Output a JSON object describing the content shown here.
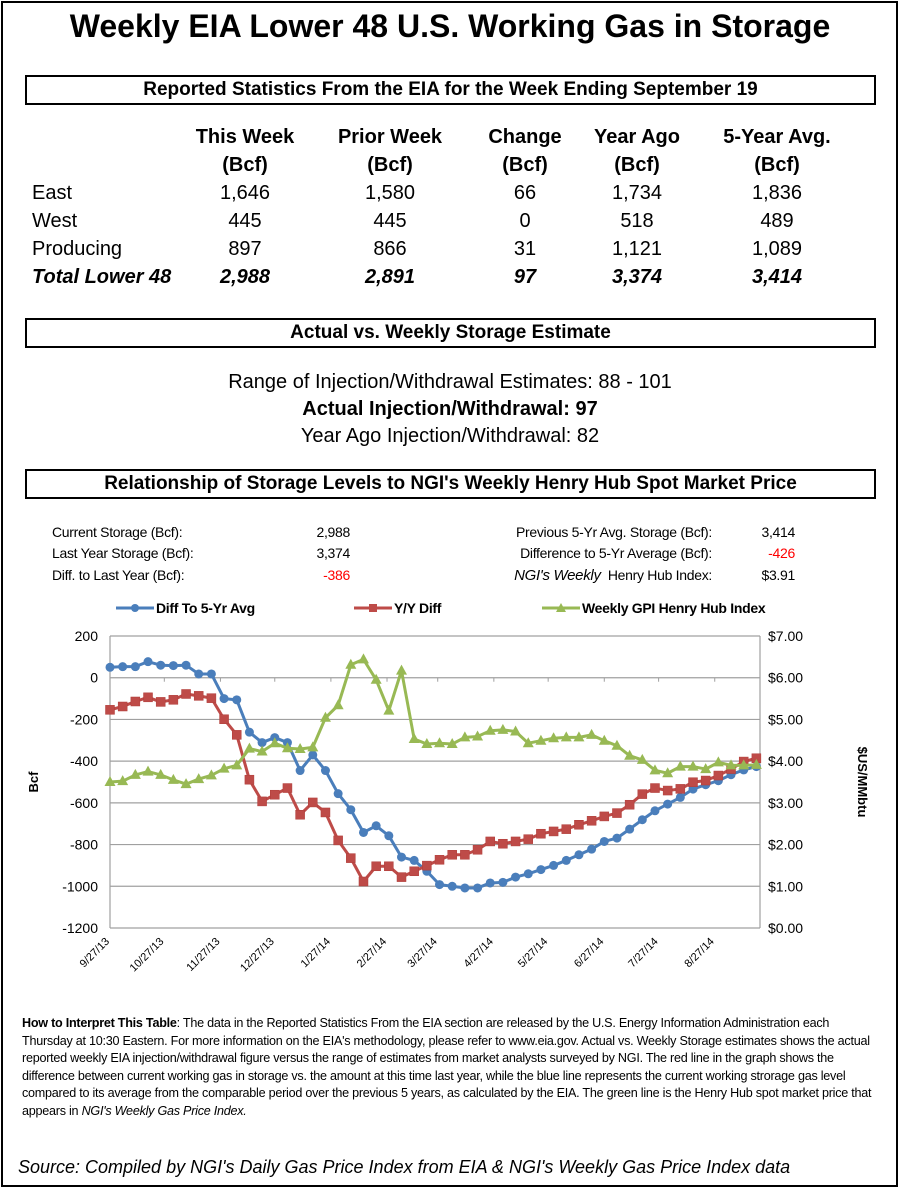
{
  "title": "Weekly EIA Lower 48 U.S. Working Gas in Storage",
  "section1": {
    "heading": "Reported Statistics From the EIA for the Week Ending September 19",
    "columns": [
      {
        "line1": "This Week",
        "line2": "(Bcf)"
      },
      {
        "line1": "Prior Week",
        "line2": "(Bcf)"
      },
      {
        "line1": "Change",
        "line2": "(Bcf)"
      },
      {
        "line1": "Year Ago",
        "line2": "(Bcf)"
      },
      {
        "line1": "5-Year Avg.",
        "line2": "(Bcf)"
      }
    ],
    "rows": [
      {
        "label": "East",
        "values": [
          "1,646",
          "1,580",
          "66",
          "1,734",
          "1,836"
        ]
      },
      {
        "label": "West",
        "values": [
          "445",
          "445",
          "0",
          "518",
          "489"
        ]
      },
      {
        "label": "Producing",
        "values": [
          "897",
          "866",
          "31",
          "1,121",
          "1,089"
        ]
      },
      {
        "label": "Total Lower 48",
        "values": [
          "2,988",
          "2,891",
          "97",
          "3,374",
          "3,414"
        ]
      }
    ]
  },
  "section2": {
    "heading": "Actual vs. Weekly Storage Estimate",
    "range": "Range of Injection/Withdrawal Estimates: 88 - 101",
    "actual": "Actual Injection/Withdrawal: 97",
    "year_ago": "Year Ago Injection/Withdrawal: 82"
  },
  "section3": {
    "heading": "Relationship of Storage Levels to NGI's Weekly Henry Hub Spot Market Price",
    "stats_left": [
      {
        "label": "Current Storage (Bcf):",
        "value": "2,988"
      },
      {
        "label": "Last Year Storage (Bcf):",
        "value": "3,374"
      },
      {
        "label": "Diff. to Last Year (Bcf):",
        "value": "-386"
      }
    ],
    "stats_right": [
      {
        "label": "Previous 5-Yr Avg. Storage (Bcf):",
        "value": "3,414"
      },
      {
        "label": "Difference to 5-Yr Average (Bcf):",
        "value": "-426"
      },
      {
        "label_italic": "NGI's Weekly",
        "label": "Henry Hub Index:",
        "value": "$3.91"
      }
    ],
    "negative_color": "#ff0000"
  },
  "chart_data": {
    "type": "line",
    "legend_position": "top",
    "grid": true,
    "xlabel": "",
    "ylabel": "Bcf",
    "y2label": "$US/MMbtu",
    "ylim": [
      -1200,
      200
    ],
    "y2lim": [
      0,
      7
    ],
    "xlim": [
      "9/27/13",
      "9/21/14"
    ],
    "yticks": [
      "200",
      "0",
      "-200",
      "-400",
      "-600",
      "-800",
      "-1000",
      "-1200"
    ],
    "y2ticks": [
      "$7.00",
      "$6.00",
      "$5.00",
      "$4.00",
      "$3.00",
      "$2.00",
      "$1.00",
      "$0.00"
    ],
    "xticks": [
      "9/27/13",
      "10/27/13",
      "11/27/13",
      "12/27/13",
      "1/27/14",
      "2/27/14",
      "3/27/14",
      "4/27/14",
      "5/27/14",
      "6/27/14",
      "7/27/14",
      "8/27/14"
    ],
    "x": [
      "9/27/13",
      "10/4/13",
      "10/11/13",
      "10/18/13",
      "10/25/13",
      "11/1/13",
      "11/8/13",
      "11/15/13",
      "11/22/13",
      "11/29/13",
      "12/6/13",
      "12/13/13",
      "12/20/13",
      "12/27/13",
      "1/3/14",
      "1/10/14",
      "1/17/14",
      "1/24/14",
      "1/31/14",
      "2/7/14",
      "2/14/14",
      "2/21/14",
      "2/28/14",
      "3/7/14",
      "3/14/14",
      "3/21/14",
      "3/28/14",
      "4/4/14",
      "4/11/14",
      "4/18/14",
      "4/25/14",
      "5/2/14",
      "5/9/14",
      "5/16/14",
      "5/23/14",
      "5/30/14",
      "6/6/14",
      "6/13/14",
      "6/20/14",
      "6/27/14",
      "7/4/14",
      "7/11/14",
      "7/18/14",
      "7/25/14",
      "8/1/14",
      "8/8/14",
      "8/15/14",
      "8/22/14",
      "8/29/14",
      "9/5/14",
      "9/12/14",
      "9/19/14"
    ],
    "series": [
      {
        "name": "Diff To 5-Yr Avg",
        "axis": "left",
        "color": "#4a7ebb",
        "marker": "circle",
        "values": [
          50,
          53,
          53,
          77,
          60,
          58,
          60,
          18,
          18,
          -100,
          -106,
          -261,
          -311,
          -287,
          -311,
          -445,
          -370,
          -445,
          -556,
          -633,
          -742,
          -710,
          -758,
          -860,
          -876,
          -928,
          -992,
          -1000,
          -1008,
          -1008,
          -984,
          -981,
          -956,
          -940,
          -920,
          -900,
          -876,
          -849,
          -822,
          -785,
          -769,
          -726,
          -681,
          -638,
          -606,
          -574,
          -534,
          -513,
          -494,
          -465,
          -442,
          -426
        ]
      },
      {
        "name": "Y/Y Diff",
        "axis": "left",
        "color": "#be4b48",
        "marker": "square",
        "values": [
          -154,
          -138,
          -114,
          -94,
          -116,
          -106,
          -78,
          -87,
          -98,
          -199,
          -274,
          -489,
          -593,
          -561,
          -529,
          -657,
          -598,
          -646,
          -780,
          -865,
          -977,
          -904,
          -904,
          -956,
          -928,
          -901,
          -873,
          -849,
          -849,
          -825,
          -785,
          -796,
          -785,
          -774,
          -748,
          -737,
          -726,
          -705,
          -686,
          -665,
          -649,
          -609,
          -558,
          -529,
          -541,
          -533,
          -501,
          -493,
          -469,
          -438,
          -402,
          -386
        ]
      },
      {
        "name": "Weekly GPI Henry Hub Index",
        "axis": "right",
        "color": "#98b954",
        "marker": "triangle",
        "values": [
          3.5,
          3.52,
          3.67,
          3.75,
          3.67,
          3.55,
          3.45,
          3.57,
          3.66,
          3.82,
          3.9,
          4.3,
          4.23,
          4.43,
          4.31,
          4.29,
          4.33,
          5.04,
          5.34,
          6.31,
          6.44,
          5.95,
          5.21,
          6.17,
          4.53,
          4.41,
          4.43,
          4.41,
          4.57,
          4.59,
          4.73,
          4.75,
          4.71,
          4.43,
          4.49,
          4.55,
          4.57,
          4.57,
          4.63,
          4.49,
          4.37,
          4.13,
          4.03,
          3.78,
          3.71,
          3.87,
          3.87,
          3.81,
          3.97,
          3.9,
          3.9,
          3.91
        ]
      }
    ]
  },
  "notes": {
    "bold_lead": "How to Interpret This Table",
    "text": ": The data in the Reported Statistics From the EIA section are released by the U.S. Energy Information Administration each Thursday at 10:30 Eastern. For more information on the EIA's methodology, please refer to www.eia.gov. Actual vs. Weekly Storage estimates shows the actual reported weekly EIA injection/withdrawal figure versus the range of estimates from market analysts surveyed by NGI. The red  line in the graph shows the difference between current working gas in storage vs. the amount at this time last year, while the blue line represents the current working strorage gas level  compared to its average from the comparable period over the previous 5 years, as calculated by the EIA. The green line is the Henry Hub spot market price that appears in ",
    "italic_tail": "NGI's Weekly Gas Price Index."
  },
  "source": "Source: Compiled by NGI's Daily Gas Price Index from EIA & NGI's Weekly Gas Price Index data"
}
